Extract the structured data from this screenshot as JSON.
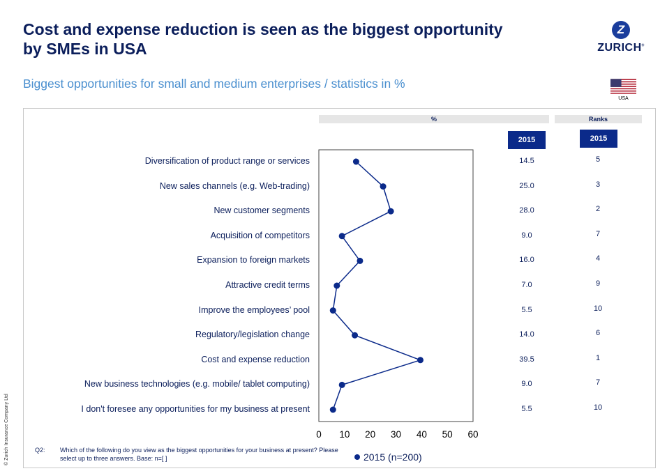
{
  "title": "Cost and expense reduction is seen as the biggest opportunity by SMEs in USA",
  "subtitle": "Biggest opportunities for small and medium enterprises / statistics in %",
  "logo": {
    "letter": "Z",
    "name": "ZURICH"
  },
  "country_label": "USA",
  "headers": {
    "percent": "%",
    "ranks": "Ranks",
    "year_values": "2015",
    "year_ranks": "2015"
  },
  "chart_data": {
    "type": "line",
    "categories": [
      "Diversification of product range or services",
      "New sales channels (e.g. Web-trading)",
      "New customer segments",
      "Acquisition of competitors",
      "Expansion to foreign markets",
      "Attractive credit terms",
      "Improve the employees’ pool",
      "Regulatory/legislation change",
      "Cost and expense reduction",
      "New business technologies (e.g. mobile/ tablet computing)",
      "I don't foresee any opportunities for my business at present"
    ],
    "values": [
      14.5,
      25.0,
      28.0,
      9.0,
      16.0,
      7.0,
      5.5,
      14.0,
      39.5,
      9.0,
      5.5
    ],
    "value_labels": [
      "14.5",
      "25.0",
      "28.0",
      "9.0",
      "16.0",
      "7.0",
      "5.5",
      "14.0",
      "39.5",
      "9.0",
      "5.5"
    ],
    "ranks": [
      "5",
      "3",
      "2",
      "7",
      "4",
      "9",
      "10",
      "6",
      "1",
      "7",
      "10"
    ],
    "xlim": [
      0,
      60
    ],
    "xticks": [
      "0",
      "10",
      "20",
      "30",
      "40",
      "50",
      "60"
    ],
    "legend": "2015 (n=200)",
    "series_color": "#0b2a8a"
  },
  "footnote": {
    "q": "Q2:",
    "text": "Which of the following do you view as the biggest opportunities for your business at present? Please select up to three answers. Base: n=[ ]"
  },
  "copyright": "© Zurich Insurance Company Ltd"
}
